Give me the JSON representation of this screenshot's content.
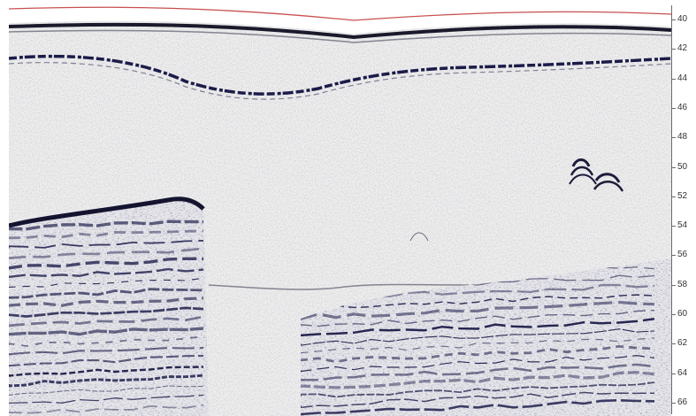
{
  "image": {
    "type": "seismic-profile",
    "colors": {
      "background": "#f0f0f0",
      "reflector": "#1c1c4a",
      "surface_line": "#c85050",
      "axis": "#6c6c6c"
    }
  },
  "depth_axis": {
    "position": "right",
    "labels": [
      "40",
      "42",
      "44",
      "46",
      "48",
      "50",
      "52",
      "54",
      "56",
      "58",
      "60",
      "62",
      "64",
      "66"
    ]
  }
}
